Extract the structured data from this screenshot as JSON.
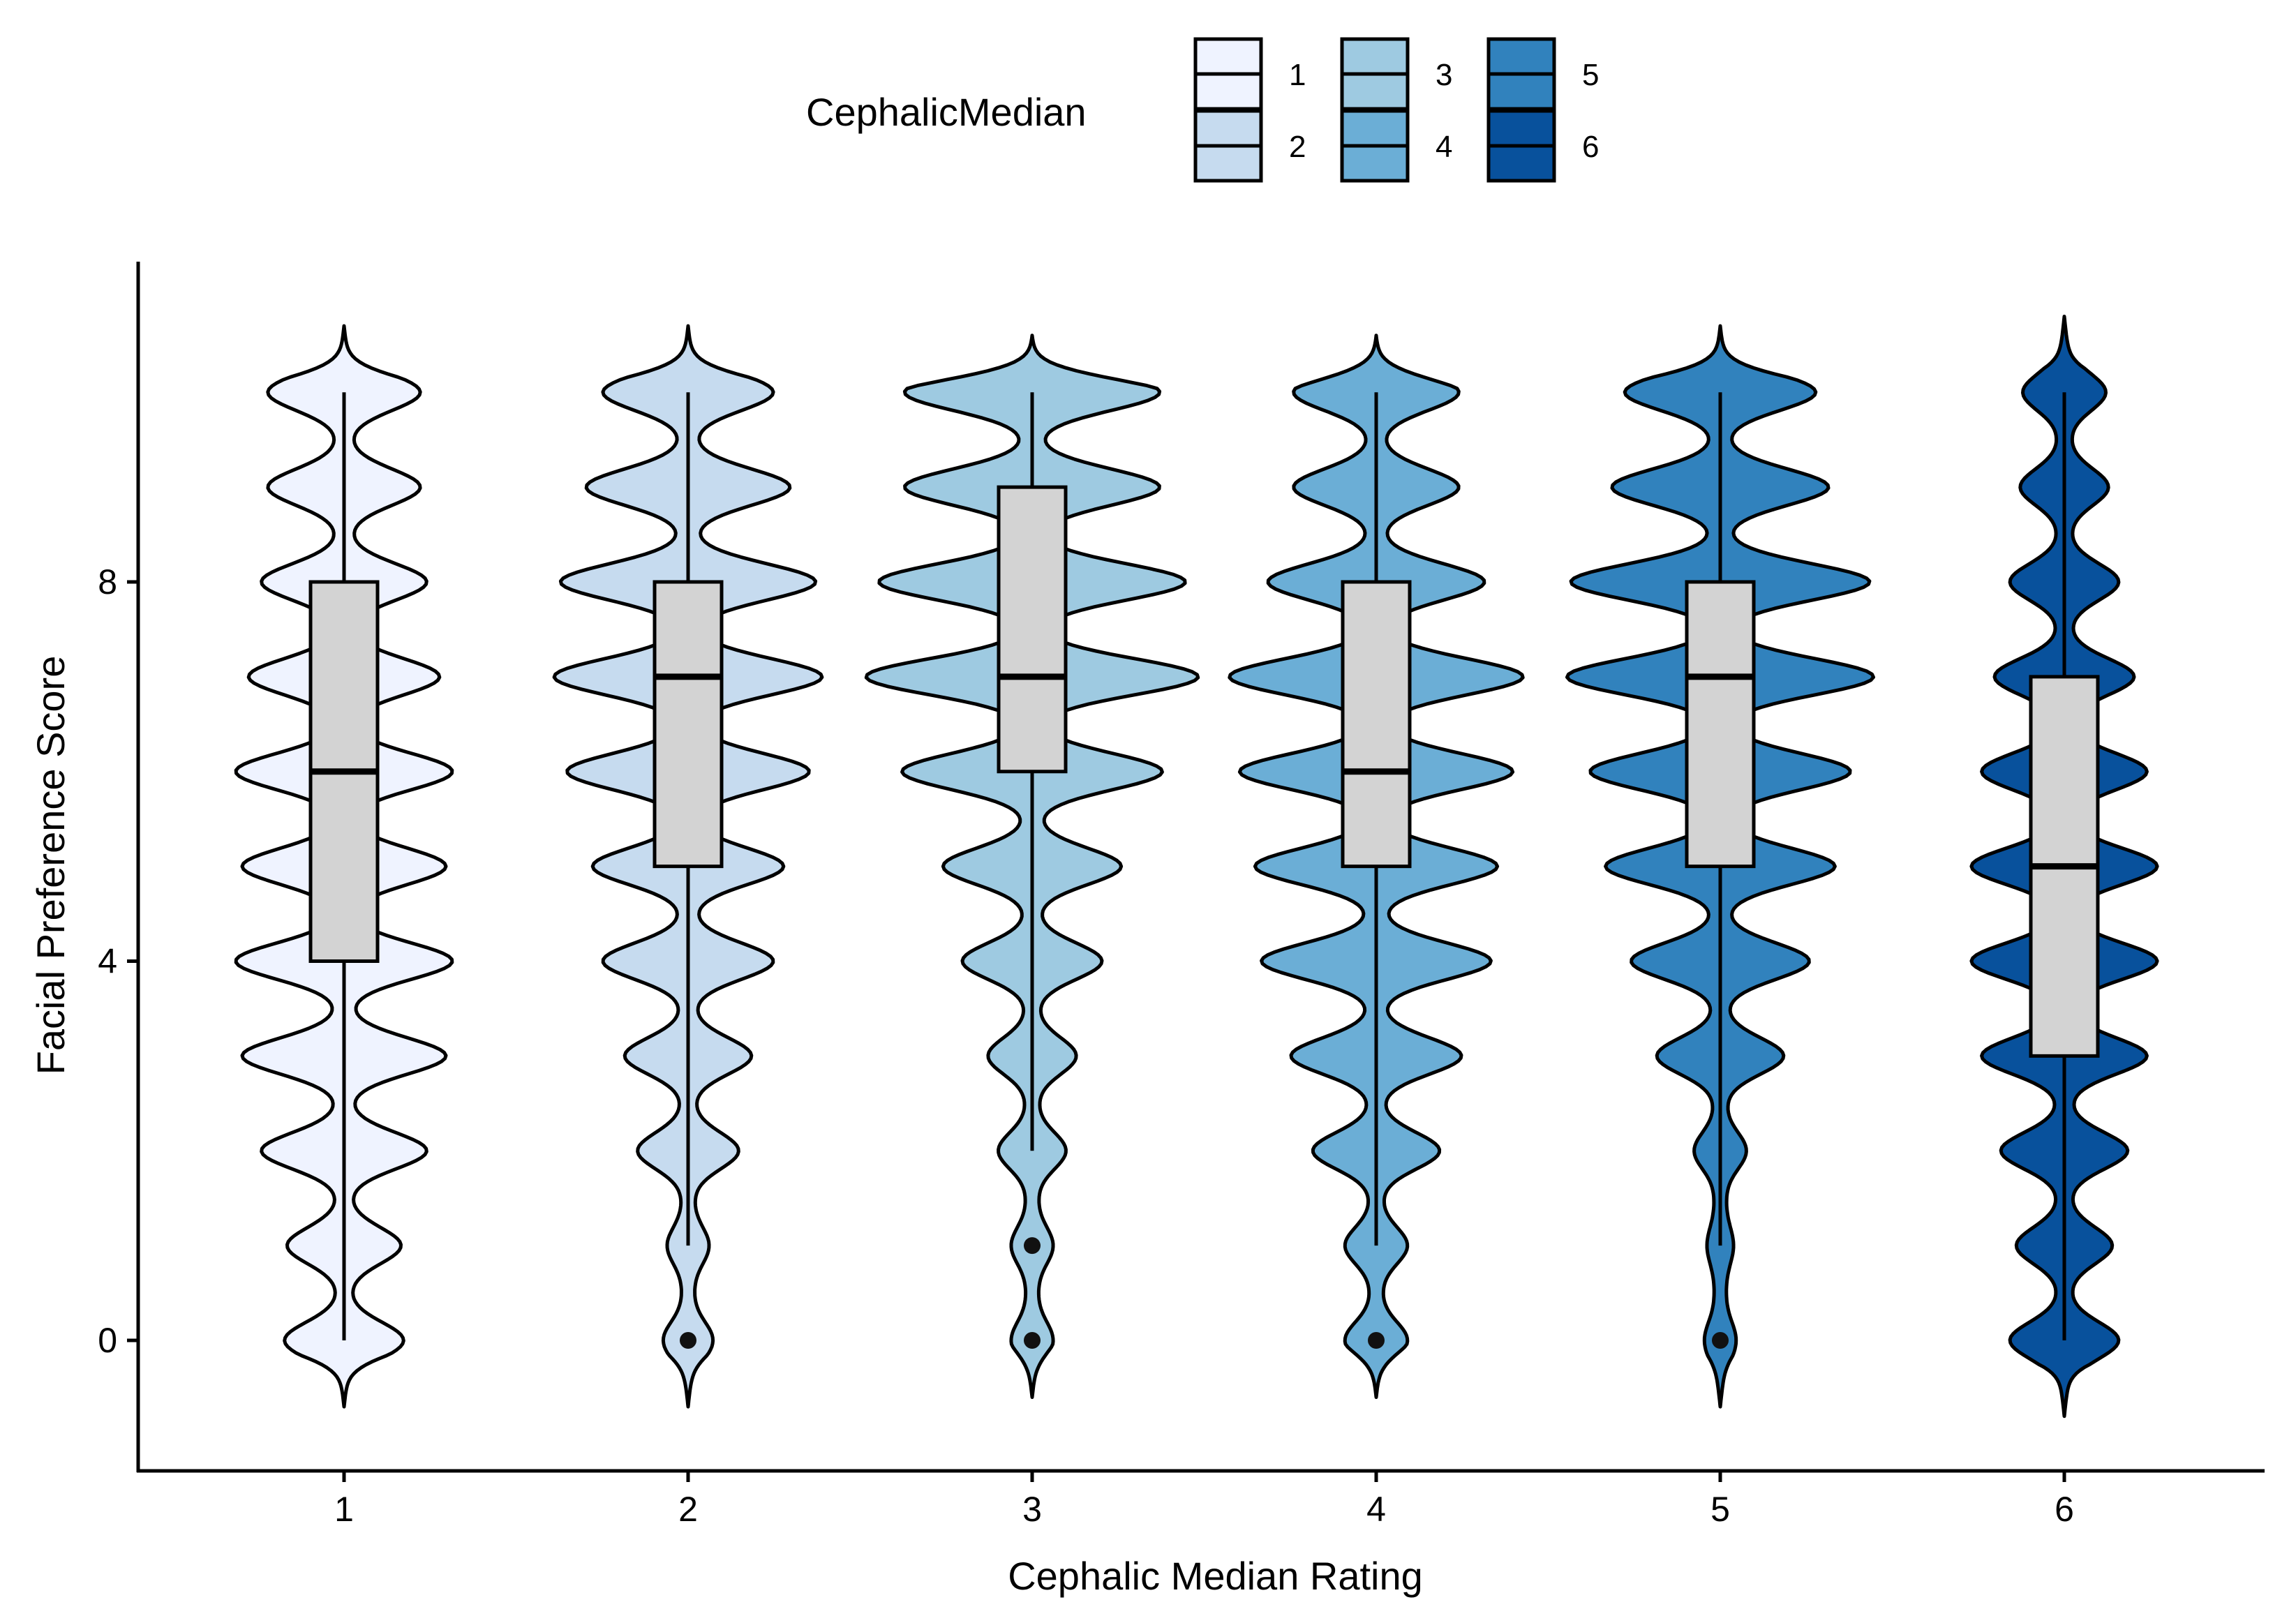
{
  "chart_data": {
    "type": "violin",
    "xlabel": "Cephalic Median Rating",
    "ylabel": "Facial Preference Score",
    "ylim": [
      -1.4,
      11.4
    ],
    "y_ticks": [
      0,
      4,
      8
    ],
    "legend": {
      "title": "CephalicMedian",
      "position": "top",
      "entries": [
        {
          "label": "1",
          "color": "#EFF3FF"
        },
        {
          "label": "2",
          "color": "#C6DBEF"
        },
        {
          "label": "3",
          "color": "#9ECAE1"
        },
        {
          "label": "4",
          "color": "#6BAED6"
        },
        {
          "label": "5",
          "color": "#3182BD"
        },
        {
          "label": "6",
          "color": "#08519C"
        }
      ]
    },
    "box_fill": "#D3D3D3",
    "categories": [
      "1",
      "2",
      "3",
      "4",
      "5",
      "6"
    ],
    "groups": [
      {
        "category": "1",
        "fill": "#EFF3FF",
        "box": {
          "whisker_low": 0,
          "q1": 4,
          "median": 6,
          "q3": 8,
          "whisker_high": 10
        },
        "outliers": [],
        "violin_range": [
          -0.7,
          10.7
        ],
        "density": {
          "0": 0.42,
          "1": 0.4,
          "2": 0.6,
          "3": 0.75,
          "4": 0.8,
          "5": 0.75,
          "6": 0.8,
          "7": 0.7,
          "8": 0.6,
          "9": 0.55,
          "10": 0.55
        }
      },
      {
        "category": "2",
        "fill": "#C6DBEF",
        "box": {
          "whisker_low": 1,
          "q1": 5,
          "median": 7,
          "q3": 8,
          "whisker_high": 10
        },
        "outliers": [
          0
        ],
        "violin_range": [
          -0.7,
          10.7
        ],
        "density": {
          "0": 0.15,
          "1": 0.12,
          "2": 0.35,
          "3": 0.45,
          "4": 0.62,
          "5": 0.7,
          "6": 0.9,
          "7": 1.0,
          "8": 0.95,
          "9": 0.75,
          "10": 0.62
        }
      },
      {
        "category": "3",
        "fill": "#9ECAE1",
        "box": {
          "whisker_low": 2,
          "q1": 6,
          "median": 7,
          "q3": 9,
          "whisker_high": 10
        },
        "outliers": [
          0,
          1
        ],
        "violin_range": [
          -0.6,
          10.6
        ],
        "density": {
          "0": 0.12,
          "1": 0.12,
          "2": 0.22,
          "3": 0.3,
          "4": 0.5,
          "5": 0.65,
          "6": 0.97,
          "7": 1.25,
          "8": 1.15,
          "9": 0.95,
          "10": 0.95
        }
      },
      {
        "category": "4",
        "fill": "#6BAED6",
        "box": {
          "whisker_low": 1,
          "q1": 5,
          "median": 6,
          "q3": 8,
          "whisker_high": 10
        },
        "outliers": [
          0
        ],
        "violin_range": [
          -0.6,
          10.6
        ],
        "density": {
          "0": 0.2,
          "1": 0.2,
          "2": 0.45,
          "3": 0.62,
          "4": 0.85,
          "5": 0.9,
          "6": 1.02,
          "7": 1.1,
          "8": 0.8,
          "9": 0.6,
          "10": 0.6
        }
      },
      {
        "category": "5",
        "fill": "#3182BD",
        "box": {
          "whisker_low": 1,
          "q1": 5,
          "median": 7,
          "q3": 8,
          "whisker_high": 10
        },
        "outliers": [
          0
        ],
        "violin_range": [
          -0.7,
          10.7
        ],
        "density": {
          "0": 0.08,
          "1": 0.06,
          "2": 0.16,
          "3": 0.45,
          "4": 0.65,
          "5": 0.85,
          "6": 0.97,
          "7": 1.15,
          "8": 1.12,
          "9": 0.8,
          "10": 0.7
        }
      },
      {
        "category": "6",
        "fill": "#08519C",
        "box": {
          "whisker_low": 0,
          "q1": 3,
          "median": 5,
          "q3": 7,
          "whisker_high": 10
        },
        "outliers": [],
        "violin_range": [
          -0.8,
          10.8
        ],
        "density": {
          "0": 0.38,
          "1": 0.33,
          "2": 0.45,
          "3": 0.6,
          "4": 0.68,
          "5": 0.68,
          "6": 0.6,
          "7": 0.5,
          "8": 0.38,
          "9": 0.3,
          "10": 0.28
        }
      }
    ]
  }
}
